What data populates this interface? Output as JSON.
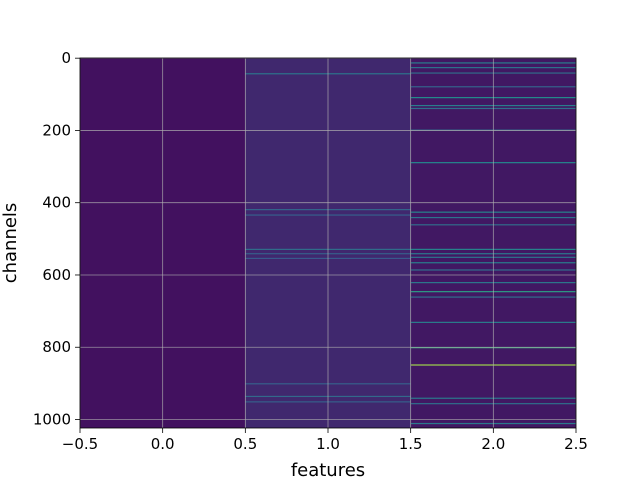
{
  "chart_data": {
    "type": "heatmap",
    "title": "",
    "xlabel": "features",
    "ylabel": "channels",
    "xlim": [
      -0.5,
      2.5
    ],
    "ylim": [
      1023.5,
      -0.5
    ],
    "x_ticks": [
      -0.5,
      0.0,
      0.5,
      1.0,
      1.5,
      2.0,
      2.5
    ],
    "x_tick_labels": [
      "−0.5",
      "0.0",
      "0.5",
      "1.0",
      "1.5",
      "2.0",
      "2.5"
    ],
    "y_ticks": [
      0,
      200,
      400,
      600,
      800,
      1000
    ],
    "y_tick_labels": [
      "0",
      "200",
      "400",
      "600",
      "800",
      "1000"
    ],
    "grid": true,
    "colormap": "viridis",
    "columns": [
      {
        "feature": 0,
        "base_level": 0.05,
        "highlights": []
      },
      {
        "feature": 1,
        "base_level": 0.12,
        "highlights": [
          {
            "channel": 42,
            "level": 0.38
          },
          {
            "channel": 418,
            "level": 0.33
          },
          {
            "channel": 433,
            "level": 0.3
          },
          {
            "channel": 528,
            "level": 0.36
          },
          {
            "channel": 540,
            "level": 0.3
          },
          {
            "channel": 553,
            "level": 0.28
          },
          {
            "channel": 900,
            "level": 0.3
          },
          {
            "channel": 935,
            "level": 0.34
          },
          {
            "channel": 950,
            "level": 0.3
          }
        ]
      },
      {
        "feature": 2,
        "base_level": 0.07,
        "highlights": [
          {
            "channel": 12,
            "level": 0.42
          },
          {
            "channel": 25,
            "level": 0.38
          },
          {
            "channel": 40,
            "level": 0.35
          },
          {
            "channel": 78,
            "level": 0.32
          },
          {
            "channel": 108,
            "level": 0.48
          },
          {
            "channel": 130,
            "level": 0.42
          },
          {
            "channel": 138,
            "level": 0.36
          },
          {
            "channel": 198,
            "level": 0.35
          },
          {
            "channel": 288,
            "level": 0.46
          },
          {
            "channel": 425,
            "level": 0.45
          },
          {
            "channel": 440,
            "level": 0.38
          },
          {
            "channel": 460,
            "level": 0.35
          },
          {
            "channel": 528,
            "level": 0.45
          },
          {
            "channel": 540,
            "level": 0.4
          },
          {
            "channel": 550,
            "level": 0.38
          },
          {
            "channel": 565,
            "level": 0.42
          },
          {
            "channel": 585,
            "level": 0.36
          },
          {
            "channel": 620,
            "level": 0.4
          },
          {
            "channel": 645,
            "level": 0.55
          },
          {
            "channel": 660,
            "level": 0.36
          },
          {
            "channel": 730,
            "level": 0.42
          },
          {
            "channel": 800,
            "level": 0.6
          },
          {
            "channel": 848,
            "level": 0.85
          },
          {
            "channel": 940,
            "level": 0.4
          },
          {
            "channel": 955,
            "level": 0.36
          },
          {
            "channel": 1010,
            "level": 0.4
          }
        ]
      }
    ]
  }
}
